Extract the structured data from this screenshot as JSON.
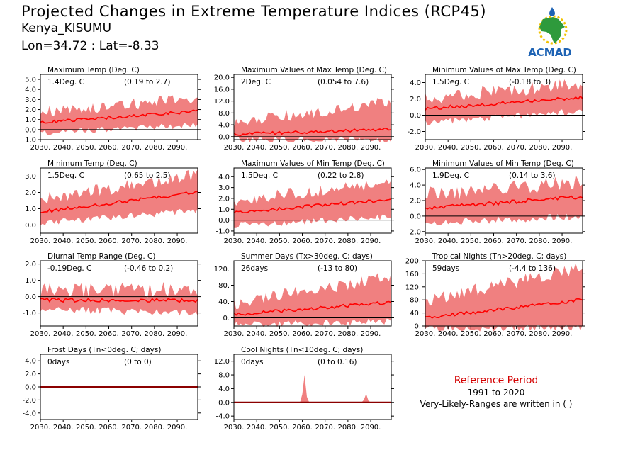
{
  "header": {
    "title": "Projected Changes in Extreme Temperature Indices (RCP45)",
    "location": "Kenya_KISUMU",
    "coords": "Lon=34.72 : Lat=-8.33"
  },
  "logo": {
    "text": "ACMAD"
  },
  "reference": {
    "title": "Reference Period",
    "years": "1991 to 2020",
    "note": "Very-Likely-Ranges are written in ( )"
  },
  "colors": {
    "band": "#f08080",
    "line": "#ff0000",
    "zero": "#000000",
    "frost_line": "#8b0000",
    "ref_title": "#d40000"
  },
  "chart_data": [
    {
      "type": "area",
      "title": "Maximum Temp (Deg. C)",
      "summary": "1.4Deg. C",
      "range": "(0.19 to 2.7)",
      "ylim": [
        -1.0,
        5.5
      ],
      "yticks": [
        -1.0,
        0.0,
        1.0,
        2.0,
        3.0,
        4.0,
        5.0
      ],
      "ytick_labels": [
        "-1.0",
        "0.0",
        "1.0",
        "2.0",
        "3.0",
        "4.0",
        "5.0"
      ],
      "xticks": [
        2030,
        2040,
        2050,
        2060,
        2070,
        2080,
        2090
      ],
      "xlim": [
        2030,
        2099
      ],
      "start": [
        0.7,
        0.0,
        1.5
      ],
      "end": [
        1.85,
        0.75,
        2.9
      ],
      "noise": 0.15,
      "seed": 1
    },
    {
      "type": "area",
      "title": "Maximum Values of Max Temp (Deg. C)",
      "summary": "2Deg. C",
      "range": "(0.054 to 7.6)",
      "ylim": [
        -1.0,
        21.0
      ],
      "yticks": [
        0.0,
        4.0,
        8.0,
        12.0,
        16.0,
        20.0
      ],
      "ytick_labels": [
        "0.0",
        "4.0",
        "8.0",
        "12.0",
        "16.0",
        "20.0"
      ],
      "xticks": [
        2030,
        2040,
        2050,
        2060,
        2070,
        2080,
        2090
      ],
      "xlim": [
        2030,
        2099
      ],
      "start": [
        0.8,
        0.0,
        4.0
      ],
      "end": [
        2.5,
        0.0,
        11.0
      ],
      "noise": 0.5,
      "seed": 2
    },
    {
      "type": "area",
      "title": "Minimum Values of Max Temp (Deg. C)",
      "summary": "1.5Deg. C",
      "range": "(-0.18 to 3)",
      "ylim": [
        -3.0,
        5.0
      ],
      "yticks": [
        -2.0,
        0.0,
        2.0,
        4.0
      ],
      "ytick_labels": [
        "-2.0",
        "0.0",
        "2.0",
        "4.0"
      ],
      "xticks": [
        2030,
        2040,
        2050,
        2060,
        2070,
        2080,
        2090
      ],
      "xlim": [
        2030,
        2099
      ],
      "start": [
        0.8,
        -0.5,
        1.8
      ],
      "end": [
        2.2,
        0.9,
        3.5
      ],
      "noise": 0.2,
      "seed": 3
    },
    {
      "type": "area",
      "title": "Minimum Temp (Deg. C)",
      "summary": "1.5Deg. C",
      "range": "(0.65 to 2.5)",
      "ylim": [
        -0.5,
        3.5
      ],
      "yticks": [
        0.0,
        1.0,
        2.0,
        3.0
      ],
      "ytick_labels": [
        "0.0",
        "1.0",
        "2.0",
        "3.0"
      ],
      "xticks": [
        2030,
        2040,
        2050,
        2060,
        2070,
        2080,
        2090
      ],
      "xlim": [
        2030,
        2099
      ],
      "start": [
        0.8,
        0.3,
        1.4
      ],
      "end": [
        2.0,
        1.1,
        2.9
      ],
      "noise": 0.1,
      "seed": 4
    },
    {
      "type": "area",
      "title": "Maximum Values of Min Temp (Deg. C)",
      "summary": "1.5Deg. C",
      "range": "(0.22 to 2.8)",
      "ylim": [
        -1.2,
        4.8
      ],
      "yticks": [
        -1.0,
        0.0,
        1.0,
        2.0,
        3.0,
        4.0
      ],
      "ytick_labels": [
        "-1.0",
        "0.0",
        "1.0",
        "2.0",
        "3.0",
        "4.0"
      ],
      "xticks": [
        2030,
        2040,
        2050,
        2060,
        2070,
        2080,
        2090
      ],
      "xlim": [
        2030,
        2099
      ],
      "start": [
        0.7,
        -0.2,
        1.6
      ],
      "end": [
        1.9,
        0.6,
        3.2
      ],
      "noise": 0.15,
      "seed": 5
    },
    {
      "type": "area",
      "title": "Minimum Values of Min Temp (Deg. C)",
      "summary": "1.9Deg. C",
      "range": "(0.14 to 3.6)",
      "ylim": [
        -2.2,
        6.2
      ],
      "yticks": [
        -2.0,
        0.0,
        2.0,
        4.0,
        6.0
      ],
      "ytick_labels": [
        "-2.0",
        "0.0",
        "2.0",
        "4.0",
        "6.0"
      ],
      "xticks": [
        2030,
        2040,
        2050,
        2060,
        2070,
        2080,
        2090
      ],
      "xlim": [
        2030,
        2099
      ],
      "start": [
        1.0,
        -0.3,
        2.4
      ],
      "end": [
        2.5,
        0.4,
        4.0
      ],
      "noise": 0.25,
      "seed": 6
    },
    {
      "type": "area",
      "title": "Diurnal Temp Range (Deg. C)",
      "summary": "-0.19Deg. C",
      "range": "(-0.46 to 0.2)",
      "ylim": [
        -1.8,
        2.2
      ],
      "yticks": [
        -1.0,
        0.0,
        1.0,
        2.0
      ],
      "ytick_labels": [
        "-1.0",
        "0.0",
        "1.0",
        "2.0"
      ],
      "xticks": [
        2030,
        2040,
        2050,
        2060,
        2070,
        2080,
        2090
      ],
      "xlim": [
        2030,
        2099
      ],
      "start": [
        -0.2,
        -0.6,
        0.15
      ],
      "end": [
        -0.25,
        -0.7,
        0.25
      ],
      "noise": 0.12,
      "seed": 7
    },
    {
      "type": "area",
      "title": "Summer Days (Tx>30deg. C; days)",
      "summary": "26days",
      "range": "(-13 to 80)",
      "ylim": [
        -20,
        140
      ],
      "yticks": [
        0,
        40,
        80,
        120
      ],
      "ytick_labels": [
        "0.",
        "40.",
        "80.",
        "120."
      ],
      "xticks": [
        2030,
        2040,
        2050,
        2060,
        2070,
        2080,
        2090
      ],
      "xlim": [
        2030,
        2099
      ],
      "start": [
        8,
        -10,
        30
      ],
      "end": [
        38,
        0,
        95
      ],
      "noise": 4,
      "seed": 8
    },
    {
      "type": "area",
      "title": "Tropical Nights (Tn>20deg. C; days)",
      "summary": "59days",
      "range": "(-4.4 to 136)",
      "ylim": [
        0,
        200
      ],
      "yticks": [
        0,
        40,
        80,
        120,
        160,
        200
      ],
      "ytick_labels": [
        "0.",
        "40.",
        "80.",
        "120.",
        "160.",
        "200."
      ],
      "xticks": [
        2030,
        2040,
        2050,
        2060,
        2070,
        2080,
        2090
      ],
      "xlim": [
        2030,
        2099
      ],
      "start": [
        25,
        2,
        70
      ],
      "end": [
        80,
        5,
        170
      ],
      "noise": 5,
      "seed": 9
    },
    {
      "type": "line",
      "title": "Frost Days (Tn<0deg. C; days)",
      "summary": "0days",
      "range": "(0 to 0)",
      "ylim": [
        -5,
        5
      ],
      "yticks": [
        -4.0,
        -2.0,
        0.0,
        2.0,
        4.0
      ],
      "ytick_labels": [
        "-4.0",
        "-2.0",
        "0.0",
        "2.0",
        "4.0"
      ],
      "xticks": [
        2030,
        2040,
        2050,
        2060,
        2070,
        2080,
        2090
      ],
      "xlim": [
        2030,
        2099
      ],
      "flat": true
    },
    {
      "type": "area",
      "title": "Cool Nights (Tn<10deg. C; days)",
      "summary": "0days",
      "range": "(0 to 0.16)",
      "ylim": [
        -5,
        14
      ],
      "yticks": [
        -4.0,
        0.0,
        4.0,
        8.0,
        12.0
      ],
      "ytick_labels": [
        "-4.0",
        "0.0",
        "4.0",
        "8.0",
        "12.0"
      ],
      "xticks": [
        2030,
        2040,
        2050,
        2060,
        2070,
        2080,
        2090
      ],
      "xlim": [
        2030,
        2099
      ],
      "flat": true,
      "spikes": [
        [
          2061,
          8.0
        ],
        [
          2088,
          2.5
        ]
      ]
    }
  ]
}
